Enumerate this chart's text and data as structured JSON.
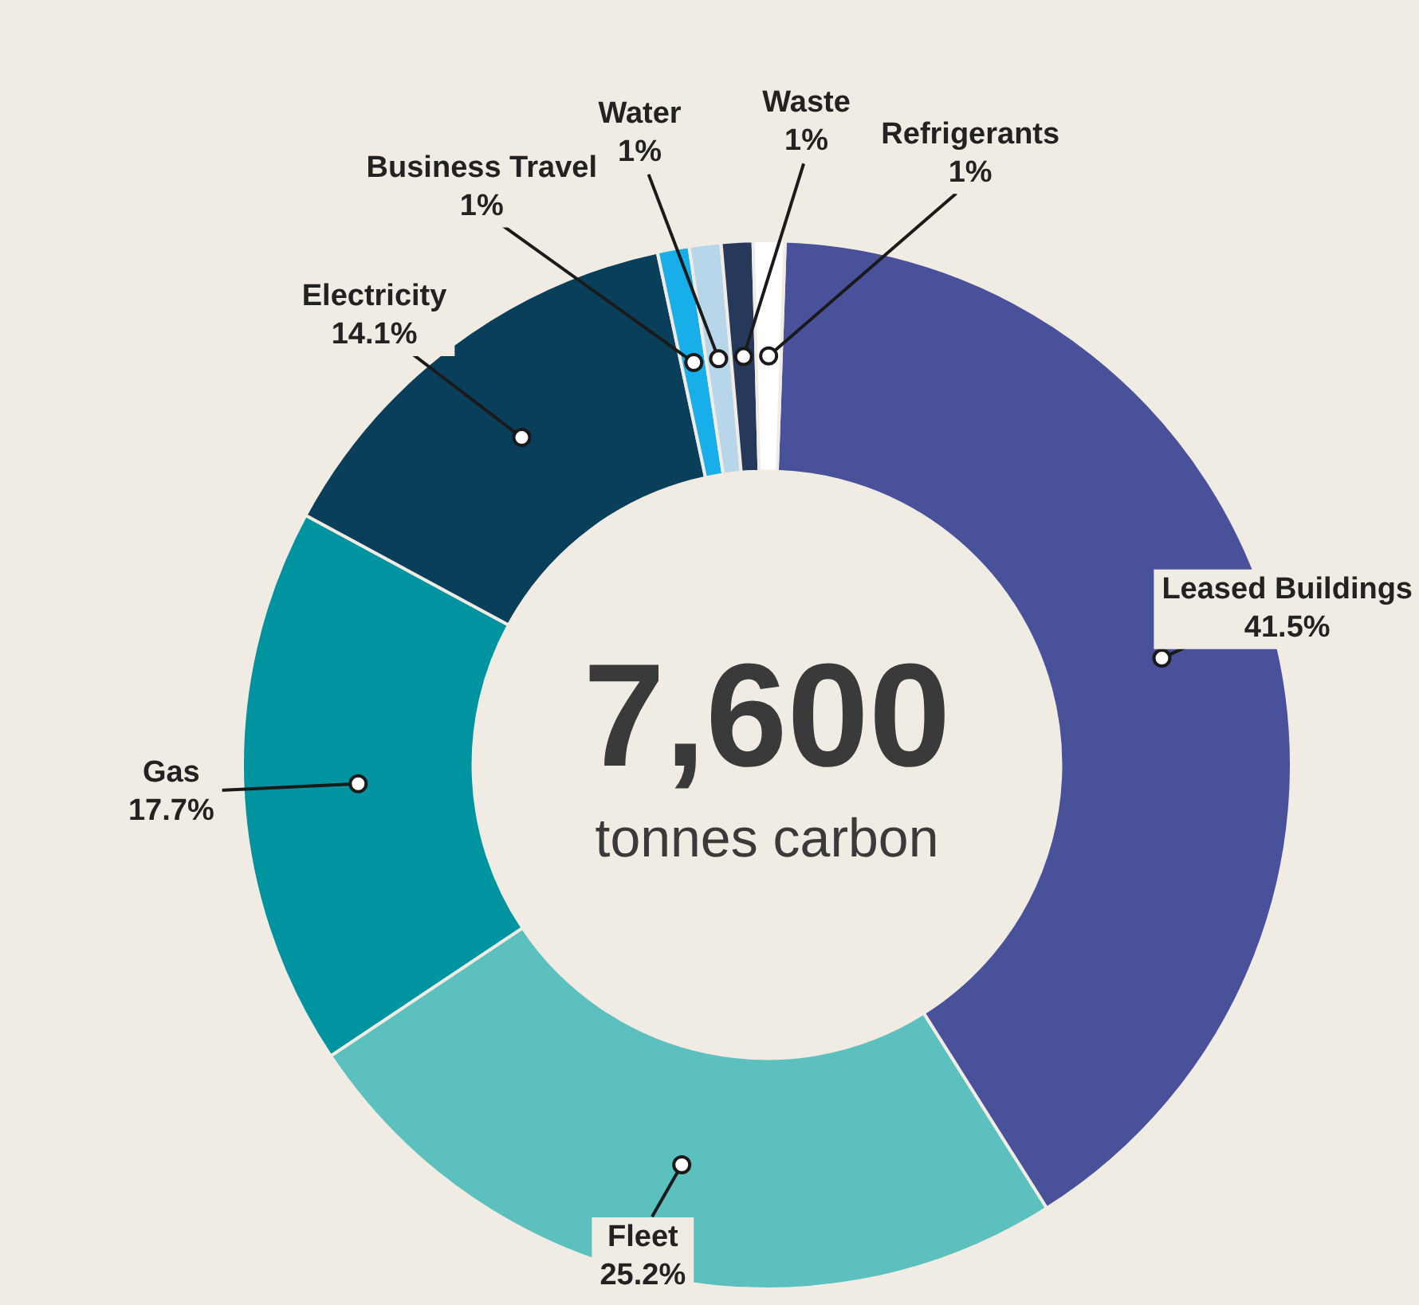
{
  "chart_data": {
    "type": "donut",
    "categories": [
      "Leased Buildings",
      "Fleet",
      "Gas",
      "Electricity",
      "Business Travel",
      "Water",
      "Waste",
      "Refrigerants"
    ],
    "values": [
      41.5,
      25.2,
      17.7,
      14.1,
      1,
      1,
      1,
      1
    ],
    "value_labels": [
      "41.5%",
      "25.2%",
      "17.7%",
      "14.1%",
      "1%",
      "1%",
      "1%",
      "1%"
    ],
    "colors": [
      "#4a519b",
      "#5bc0be",
      "#0093a0",
      "#0a3f5b",
      "#17aee9",
      "#b7d6ea",
      "#26395b",
      "#ffffff"
    ],
    "annotations": [
      "7,600",
      "tonnes carbon"
    ],
    "legend": false
  }
}
